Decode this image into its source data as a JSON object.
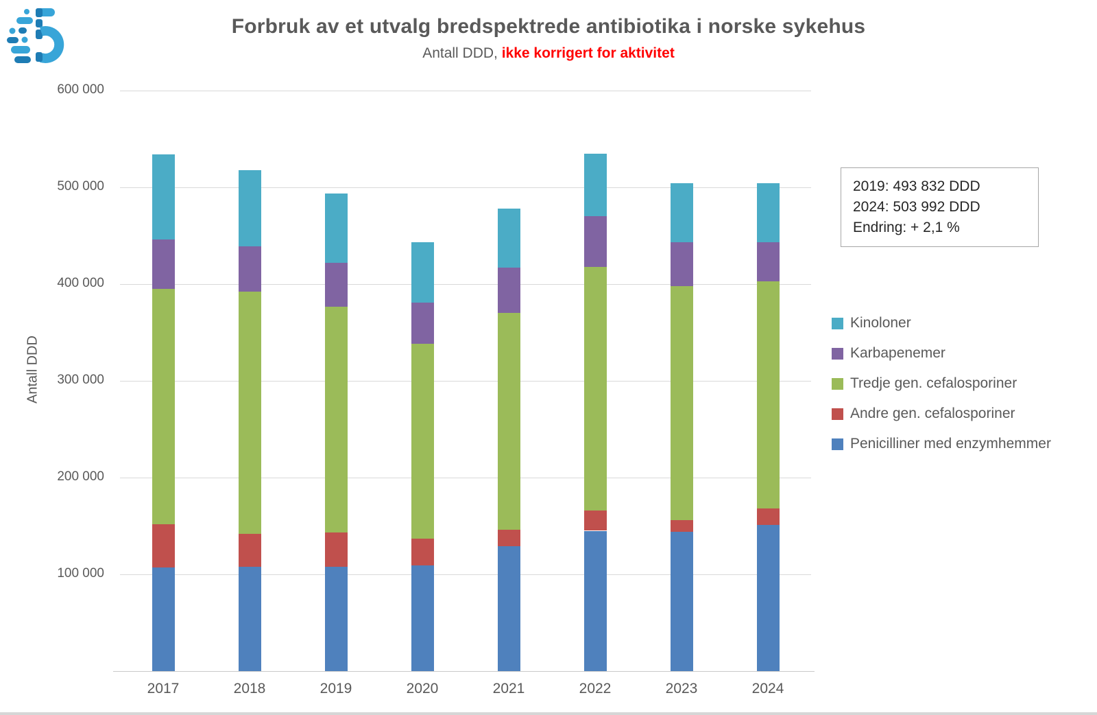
{
  "header": {
    "title": "Forbruk av et utvalg bredspektrede antibiotika i norske sykehus",
    "subtitle_prefix": "Antall DDD, ",
    "subtitle_highlight": "ikke korrigert for aktivitet",
    "title_color": "#595959",
    "subtitle_highlight_color": "#ff0000"
  },
  "logo": {
    "icon": "logo-icon",
    "color_light": "#38a5d8",
    "color_dark": "#1e7cb4"
  },
  "chart_data": {
    "type": "bar",
    "stacked": true,
    "title": "Forbruk av et utvalg bredspektrede antibiotika i norske sykehus",
    "xlabel": "",
    "ylabel": "Antall DDD",
    "ylim": [
      0,
      600000
    ],
    "grid": true,
    "gridline_color": "#d9d9d9",
    "legend_position": "right",
    "categories": [
      "2017",
      "2018",
      "2019",
      "2020",
      "2021",
      "2022",
      "2023",
      "2024"
    ],
    "series": [
      {
        "name": "Penicilliner med enzymhemmer",
        "color": "#4F81BD",
        "values": [
          107000,
          108000,
          108000,
          109000,
          129000,
          145000,
          144000,
          151000
        ]
      },
      {
        "name": "Andre gen. cefalosporiner",
        "color": "#C0504D",
        "values": [
          45000,
          34000,
          35000,
          28000,
          17000,
          21000,
          12000,
          17000
        ]
      },
      {
        "name": "Tredje gen. cefalosporiner",
        "color": "#9BBB59",
        "values": [
          243000,
          250000,
          234000,
          201000,
          224000,
          252000,
          242000,
          235000
        ]
      },
      {
        "name": "Karbapenemer",
        "color": "#8064A2",
        "values": [
          51000,
          47000,
          45000,
          43000,
          47000,
          52000,
          45000,
          40000
        ]
      },
      {
        "name": "Kinoloner",
        "color": "#4BACC6",
        "values": [
          88000,
          79000,
          71832,
          62000,
          61000,
          65000,
          61000,
          60992
        ]
      }
    ],
    "totals": [
      534000,
      518000,
      493832,
      443000,
      478000,
      535000,
      504000,
      503992
    ],
    "yticks": [
      {
        "value": 100000,
        "label": "100 000"
      },
      {
        "value": 200000,
        "label": "200 000"
      },
      {
        "value": 300000,
        "label": "300 000"
      },
      {
        "value": 400000,
        "label": "400 000"
      },
      {
        "value": 500000,
        "label": "500 000"
      },
      {
        "value": 600000,
        "label": "600 000"
      }
    ],
    "legend_order": [
      "Kinoloner",
      "Karbapenemer",
      "Tredje gen. cefalosporiner",
      "Andre gen. cefalosporiner",
      "Penicilliner med enzymhemmer"
    ]
  },
  "annotation": {
    "lines": [
      "2019: 493 832 DDD",
      "2024: 503 992 DDD",
      "Endring: + 2,1 %"
    ]
  }
}
